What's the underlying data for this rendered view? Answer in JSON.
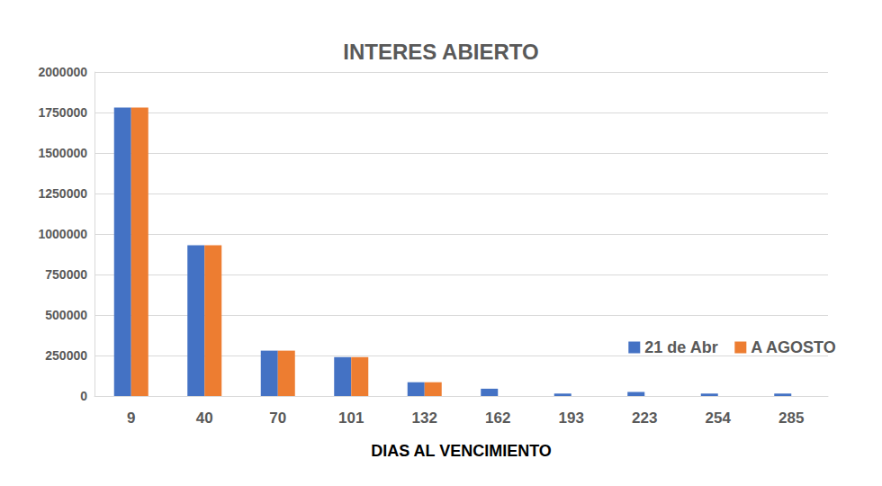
{
  "chart_data": {
    "type": "bar",
    "title": "INTERES ABIERTO",
    "x_label": "DIAS AL VENCIMIENTO",
    "categories": [
      "9",
      "40",
      "70",
      "101",
      "132",
      "162",
      "193",
      "223",
      "254",
      "285"
    ],
    "series": [
      {
        "name": "21 de Abr",
        "color": "#4472c4",
        "values": [
          1780000,
          930000,
          280000,
          240000,
          85000,
          45000,
          15000,
          25000,
          15000,
          15000
        ]
      },
      {
        "name": "A AGOSTO",
        "color": "#ed7d31",
        "values": [
          1780000,
          930000,
          280000,
          240000,
          85000,
          null,
          null,
          null,
          null,
          null
        ]
      }
    ],
    "ylim": [
      0,
      2000000
    ],
    "yticks": [
      0,
      250000,
      500000,
      750000,
      1000000,
      1250000,
      1500000,
      1750000,
      2000000
    ],
    "grid": true,
    "legend": "lower right"
  }
}
